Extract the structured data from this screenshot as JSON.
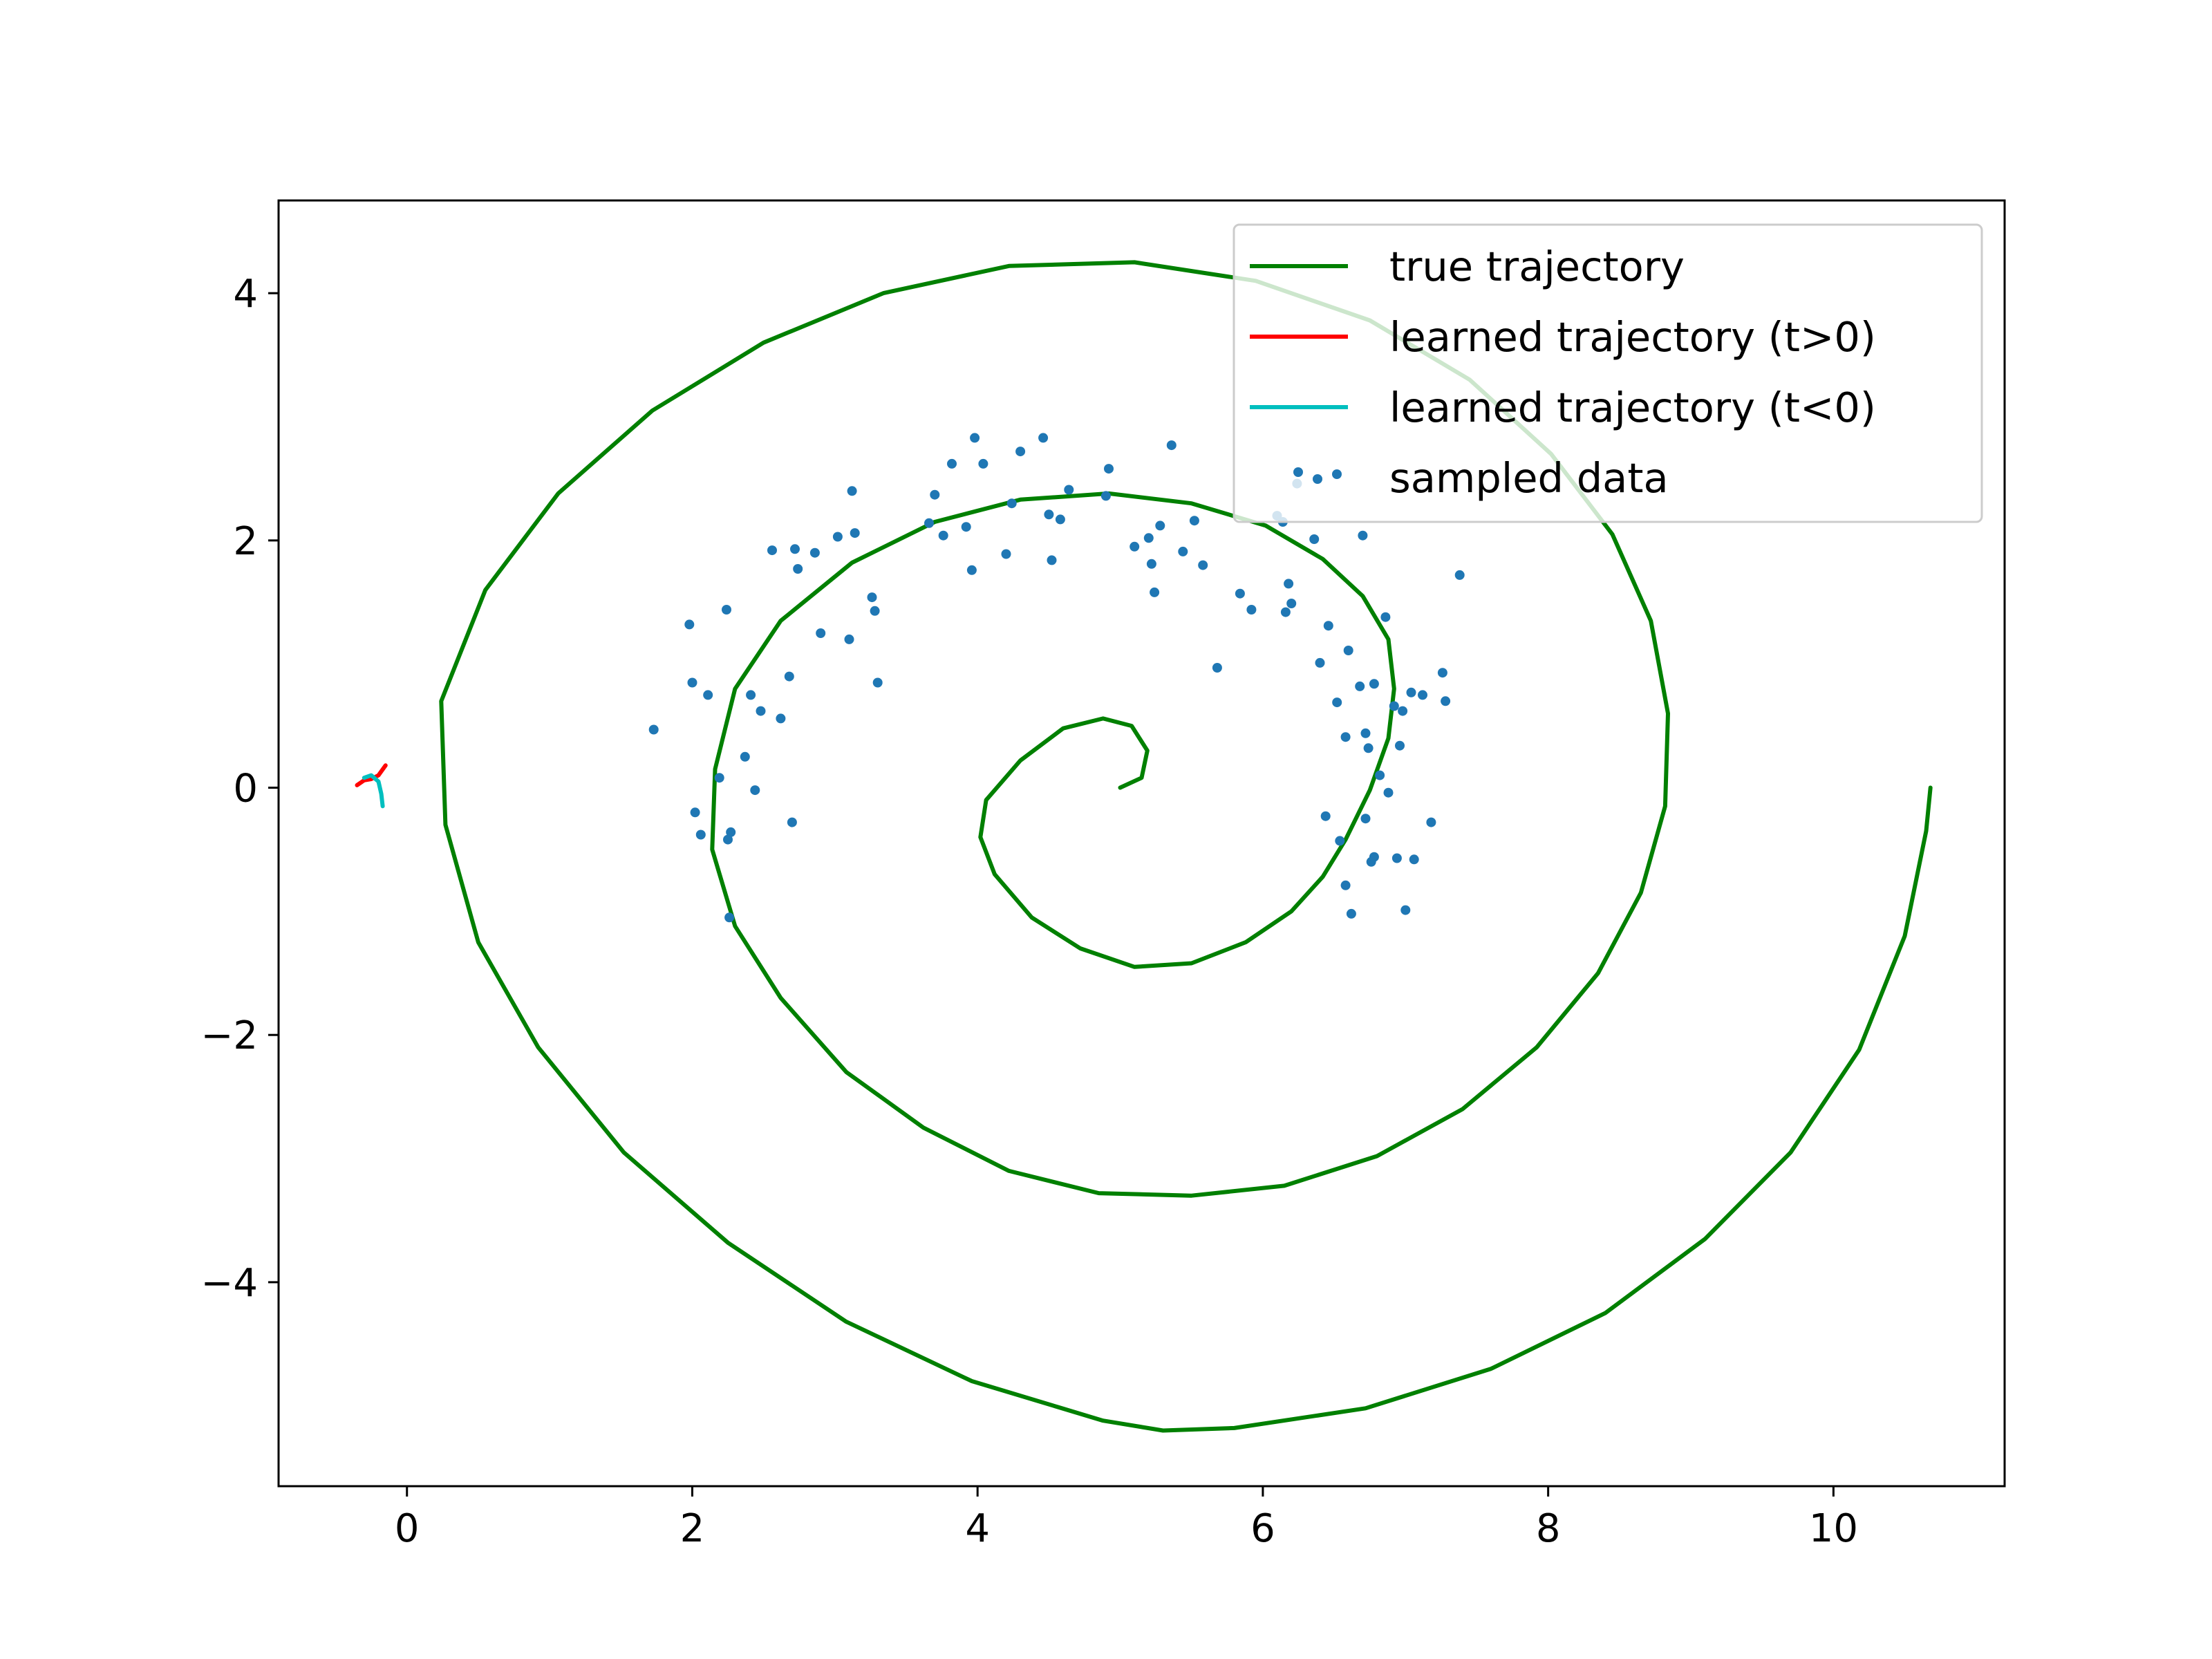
{
  "chart_data": {
    "type": "line",
    "title": "",
    "xlabel": "",
    "ylabel": "",
    "xlim": [
      -0.9,
      11.2
    ],
    "ylim": [
      -5.65,
      4.75
    ],
    "grid": false,
    "x_ticks": [
      0,
      2,
      4,
      6,
      8,
      10
    ],
    "x_tick_labels": [
      "0",
      "2",
      "4",
      "6",
      "8",
      "10"
    ],
    "y_ticks": [
      4,
      2,
      0,
      -2,
      -4
    ],
    "y_tick_labels": [
      "4",
      "2",
      "0",
      "−2",
      "−4"
    ],
    "legend": {
      "placement": "upper-right",
      "entries": [
        {
          "label": "true trajectory",
          "color": "#008000",
          "kind": "line"
        },
        {
          "label": "learned trajectory (t>0)",
          "color": "#ff0000",
          "kind": "line"
        },
        {
          "label": "learned trajectory (t<0)",
          "color": "#00bfbf",
          "kind": "line"
        },
        {
          "label": "sampled data",
          "color": "#1f77b4",
          "kind": "scatter"
        }
      ]
    },
    "series": [
      {
        "name": "true trajectory",
        "kind": "line",
        "color": "#008000",
        "x": [
          5.0,
          5.15,
          5.19,
          5.08,
          4.88,
          4.6,
          4.3,
          4.06,
          4.02,
          4.12,
          4.38,
          4.72,
          5.1,
          5.5,
          5.88,
          6.2,
          6.42,
          6.58,
          6.75,
          6.88,
          6.92,
          6.88,
          6.7,
          6.42,
          6.02,
          5.5,
          4.92,
          4.3,
          3.7,
          3.12,
          2.62,
          2.3,
          2.16,
          2.14,
          2.3,
          2.62,
          3.08,
          3.62,
          4.22,
          4.85,
          5.5,
          6.15,
          6.8,
          7.4,
          7.92,
          8.35,
          8.65,
          8.82,
          8.84,
          8.72,
          8.45,
          8.02,
          7.45,
          6.75,
          5.95,
          5.1,
          4.22,
          3.34,
          2.5,
          1.72,
          1.06,
          0.55,
          0.24,
          0.27,
          0.5,
          0.92,
          1.52,
          2.25,
          3.08,
          3.96,
          4.88,
          5.3,
          5.8,
          6.72,
          7.6,
          8.4,
          9.1,
          9.7,
          10.18,
          10.5,
          10.65,
          10.68
        ],
        "y": [
          0.0,
          0.08,
          0.3,
          0.5,
          0.56,
          0.48,
          0.22,
          -0.1,
          -0.4,
          -0.7,
          -1.05,
          -1.3,
          -1.45,
          -1.42,
          -1.25,
          -1.0,
          -0.72,
          -0.42,
          -0.02,
          0.4,
          0.8,
          1.2,
          1.55,
          1.85,
          2.12,
          2.3,
          2.38,
          2.33,
          2.15,
          1.82,
          1.35,
          0.8,
          0.15,
          -0.5,
          -1.12,
          -1.7,
          -2.3,
          -2.75,
          -3.1,
          -3.28,
          -3.3,
          -3.22,
          -2.98,
          -2.6,
          -2.1,
          -1.5,
          -0.85,
          -0.15,
          0.6,
          1.35,
          2.05,
          2.7,
          3.3,
          3.78,
          4.1,
          4.25,
          4.22,
          4.0,
          3.6,
          3.05,
          2.38,
          1.6,
          0.7,
          -0.3,
          -1.25,
          -2.1,
          -2.95,
          -3.68,
          -4.32,
          -4.8,
          -5.12,
          -5.2,
          -5.18,
          -5.02,
          -4.7,
          -4.25,
          -3.65,
          -2.95,
          -2.12,
          -1.2,
          -0.35,
          0.0
        ]
      },
      {
        "name": "learned trajectory (t>0)",
        "kind": "line",
        "color": "#ff0000",
        "x": [
          -0.35,
          -0.3,
          -0.25,
          -0.2,
          -0.15
        ],
        "y": [
          0.02,
          0.06,
          0.07,
          0.1,
          0.18
        ]
      },
      {
        "name": "learned trajectory (t<0)",
        "kind": "line",
        "color": "#00bfbf",
        "x": [
          -0.3,
          -0.25,
          -0.2,
          -0.18,
          -0.17
        ],
        "y": [
          0.08,
          0.1,
          0.05,
          -0.05,
          -0.15
        ]
      },
      {
        "name": "sampled data",
        "kind": "scatter",
        "color": "#1f77b4",
        "x": [
          1.73,
          1.98,
          2.0,
          2.02,
          2.06,
          2.11,
          2.19,
          2.24,
          2.25,
          2.26,
          2.27,
          2.37,
          2.41,
          2.44,
          2.48,
          2.56,
          2.62,
          2.68,
          2.7,
          2.72,
          2.74,
          2.86,
          2.9,
          3.02,
          3.1,
          3.12,
          3.14,
          3.26,
          3.28,
          3.3,
          3.66,
          3.7,
          3.76,
          3.82,
          3.92,
          3.96,
          3.98,
          4.04,
          4.2,
          4.24,
          4.3,
          4.46,
          4.5,
          4.52,
          4.58,
          4.64,
          4.9,
          4.92,
          5.1,
          5.2,
          5.22,
          5.24,
          5.28,
          5.36,
          5.44,
          5.52,
          5.58,
          5.68,
          5.84,
          5.92,
          6.1,
          6.14,
          6.16,
          6.18,
          6.2,
          6.24,
          6.36,
          6.4,
          6.44,
          6.46,
          6.52,
          6.54,
          6.58,
          6.58,
          6.6,
          6.62,
          6.68,
          6.7,
          6.72,
          6.72,
          6.74,
          6.76,
          6.78,
          6.78,
          6.82,
          6.86,
          6.88,
          6.92,
          6.94,
          6.96,
          6.98,
          7.0,
          7.04,
          7.06,
          7.12,
          7.18,
          7.26,
          7.28,
          7.38
        ],
        "y": [
          0.47,
          1.32,
          0.85,
          -0.2,
          -0.38,
          0.75,
          0.08,
          1.44,
          -0.42,
          -1.05,
          -0.36,
          0.25,
          0.75,
          -0.02,
          0.62,
          1.92,
          0.56,
          0.9,
          -0.28,
          1.93,
          1.77,
          1.9,
          1.25,
          2.03,
          1.2,
          2.4,
          2.06,
          1.54,
          1.43,
          0.85,
          2.14,
          2.37,
          2.04,
          2.62,
          2.11,
          1.76,
          2.83,
          2.62,
          1.89,
          2.3,
          2.72,
          2.83,
          2.21,
          1.84,
          2.17,
          2.41,
          2.36,
          2.58,
          1.95,
          2.02,
          1.81,
          1.58,
          2.12,
          2.77,
          1.91,
          2.16,
          1.8,
          0.97,
          1.57,
          1.44,
          2.2,
          2.15,
          1.42,
          1.65,
          1.49,
          2.46,
          2.01,
          1.01,
          -0.23,
          1.31,
          0.69,
          -0.43,
          0.41,
          -0.79,
          1.11,
          -1.02,
          0.82,
          2.04,
          0.44,
          -0.25,
          0.32,
          -0.6,
          0.84,
          -0.56,
          0.1,
          1.38,
          -0.04,
          0.66,
          -0.57,
          0.34,
          0.62,
          -0.99,
          0.77,
          -0.58,
          0.75,
          -0.28,
          0.93,
          0.7,
          1.72
        ]
      }
    ]
  }
}
